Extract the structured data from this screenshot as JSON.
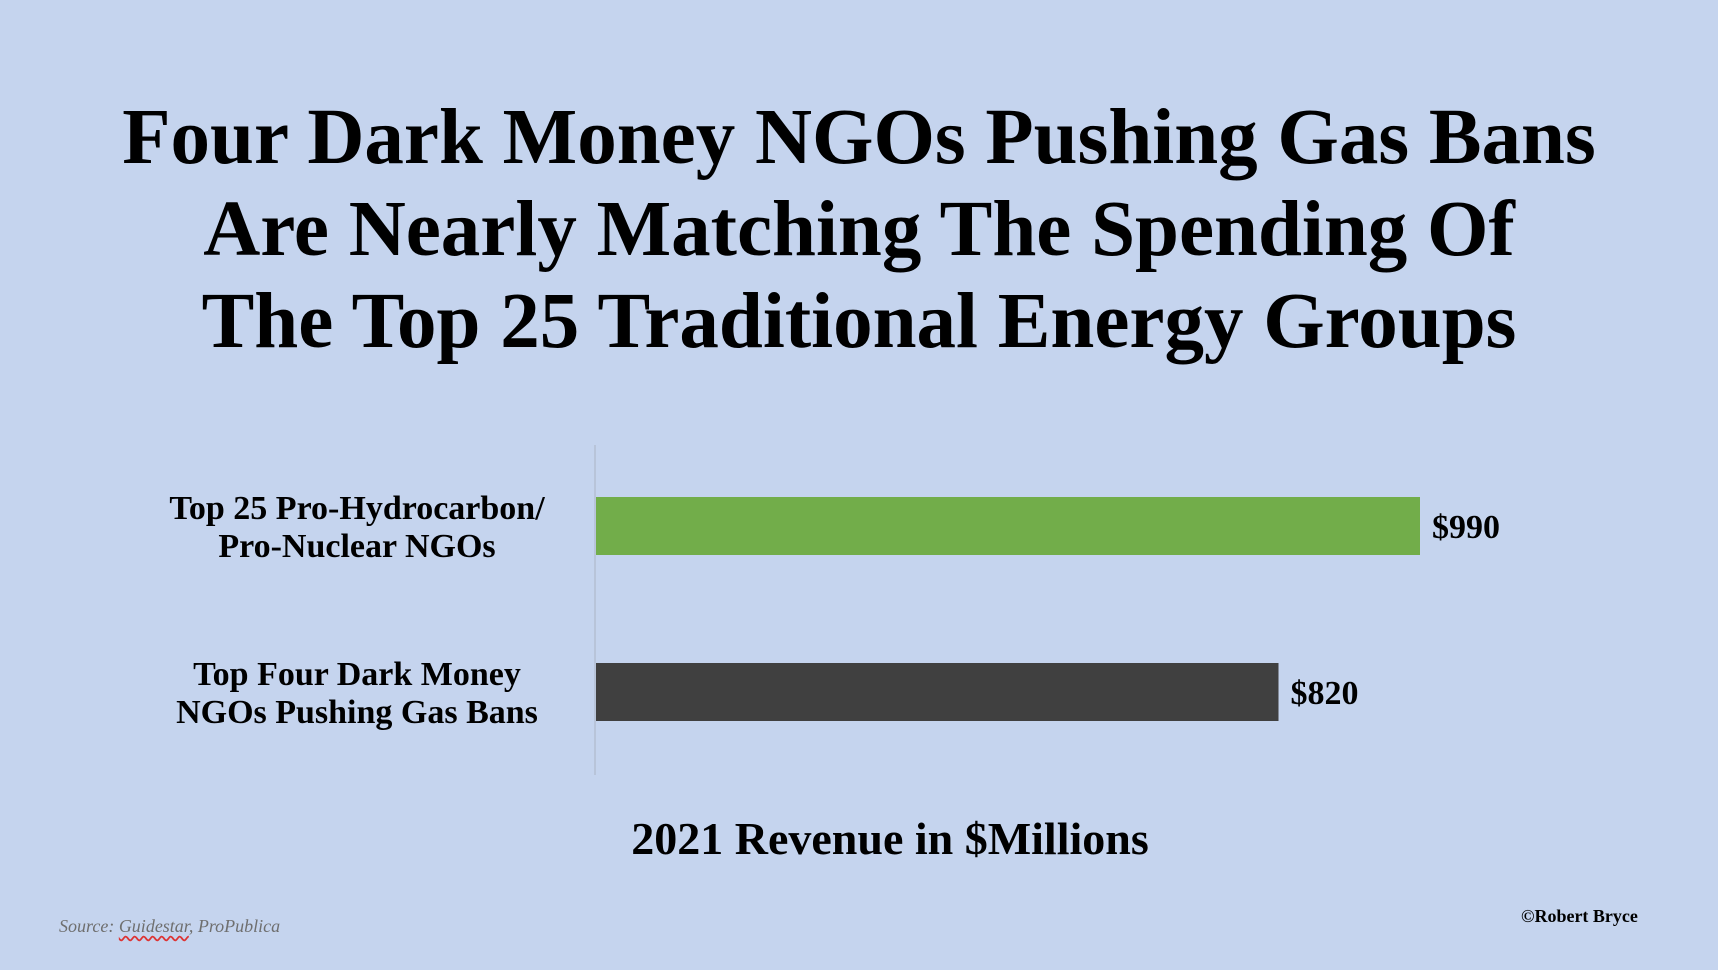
{
  "title_lines": [
    "Four Dark Money NGOs Pushing Gas Bans",
    "Are Nearly Matching The Spending Of",
    "The Top 25 Traditional Energy Groups"
  ],
  "chart_data": {
    "type": "bar",
    "orientation": "horizontal",
    "categories": [
      [
        "Top 25 Pro-Hydrocarbon/",
        "Pro-Nuclear NGOs"
      ],
      [
        "Top Four Dark Money",
        "NGOs Pushing Gas Bans"
      ]
    ],
    "values": [
      990,
      820
    ],
    "value_labels": [
      "$990",
      "$820"
    ],
    "colors": [
      "#72ad4a",
      "#404040"
    ],
    "xlabel": "2021 Revenue in $Millions",
    "xlim": [
      0,
      1200
    ],
    "grid": false,
    "legend": "none"
  },
  "source": {
    "prefix": "Source: ",
    "guidestar": "Guidestar",
    "rest": ", ProPublica"
  },
  "copyright": "©Robert Bryce"
}
